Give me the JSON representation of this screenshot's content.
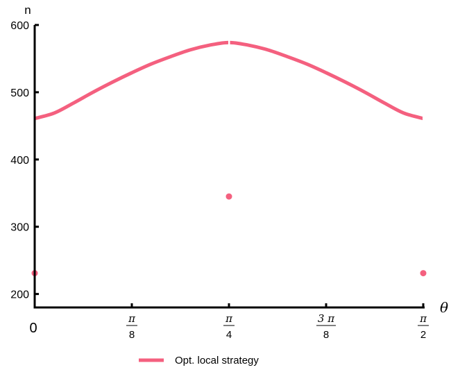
{
  "chart_data": {
    "type": "line",
    "xlabel": "θ",
    "ylabel": "n",
    "xlim": [
      0,
      1.5708
    ],
    "ylim": [
      180,
      600
    ],
    "grid": false,
    "legend_placement": "bottom-center",
    "accent_color": "#f4607f",
    "y_ticks": [
      {
        "value": 200,
        "label": "200"
      },
      {
        "value": 300,
        "label": "300"
      },
      {
        "value": 400,
        "label": "400"
      },
      {
        "value": 500,
        "label": "500"
      },
      {
        "value": 600,
        "label": "600"
      }
    ],
    "x_ticks": [
      {
        "value": 0,
        "label": "0",
        "num": "",
        "den": ""
      },
      {
        "value": 0.3927,
        "label": "",
        "num": "π",
        "den": "8"
      },
      {
        "value": 0.7854,
        "label": "",
        "num": "π",
        "den": "4"
      },
      {
        "value": 1.1781,
        "label": "",
        "num": "3 π",
        "den": "8"
      },
      {
        "value": 1.5708,
        "label": "",
        "num": "π",
        "den": "2"
      }
    ],
    "series": [
      {
        "name": "Opt. local strategy",
        "kind": "line",
        "color": "#f4607f",
        "x": [
          0,
          0.0785,
          0.1571,
          0.2356,
          0.3142,
          0.3927,
          0.4712,
          0.5498,
          0.6283,
          0.7069,
          0.7854,
          0.8639,
          0.9425,
          1.021,
          1.0996,
          1.1781,
          1.2566,
          1.3352,
          1.4137,
          1.4923,
          1.5708
        ],
        "y": [
          461,
          469,
          484,
          500,
          515,
          529,
          542,
          553,
          563,
          570,
          574,
          570,
          563,
          553,
          542,
          529,
          515,
          500,
          484,
          469,
          461
        ]
      },
      {
        "kind": "scatter",
        "color": "#f4607f",
        "x": [
          0,
          0.7854,
          1.5708
        ],
        "y": [
          231,
          345,
          231
        ]
      }
    ]
  }
}
